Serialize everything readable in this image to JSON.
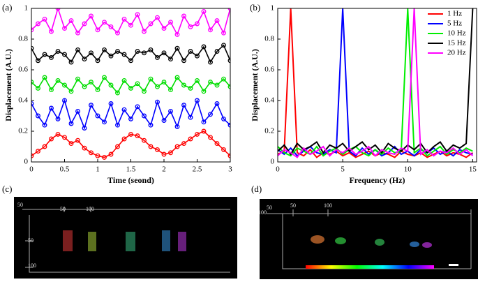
{
  "chart_data": [
    {
      "type": "line",
      "label": "(a)",
      "xlabel": "Time (seond)",
      "ylabel": "Displacement (A.U.)",
      "markers": true,
      "x": [
        0,
        0.1,
        0.2,
        0.3,
        0.4,
        0.5,
        0.6,
        0.7,
        0.8,
        0.9,
        1,
        1.1,
        1.2,
        1.3,
        1.4,
        1.5,
        1.6,
        1.7,
        1.8,
        1.9,
        2,
        2.1,
        2.2,
        2.3,
        2.4,
        2.5,
        2.6,
        2.7,
        2.8,
        2.9,
        3
      ],
      "xlim": [
        0,
        3
      ],
      "xticks": [
        0,
        0.5,
        1,
        1.5,
        2,
        2.5,
        3
      ],
      "ylim": [
        0,
        1
      ],
      "yticks": [
        0,
        0.2,
        0.4,
        0.6,
        0.8,
        1
      ],
      "series": [
        {
          "color": "#ff0000",
          "values": [
            0.04,
            0.07,
            0.1,
            0.15,
            0.18,
            0.16,
            0.12,
            0.14,
            0.09,
            0.06,
            0.04,
            0.03,
            0.05,
            0.1,
            0.15,
            0.18,
            0.17,
            0.14,
            0.1,
            0.08,
            0.05,
            0.06,
            0.1,
            0.12,
            0.15,
            0.18,
            0.2,
            0.16,
            0.12,
            0.08,
            0.04
          ]
        },
        {
          "color": "#0000ff",
          "values": [
            0.38,
            0.3,
            0.24,
            0.35,
            0.28,
            0.4,
            0.25,
            0.33,
            0.22,
            0.37,
            0.3,
            0.26,
            0.38,
            0.24,
            0.34,
            0.28,
            0.36,
            0.3,
            0.24,
            0.39,
            0.27,
            0.33,
            0.23,
            0.37,
            0.29,
            0.4,
            0.26,
            0.31,
            0.38,
            0.28,
            0.24
          ]
        },
        {
          "color": "#00dd00",
          "values": [
            0.52,
            0.48,
            0.55,
            0.47,
            0.53,
            0.5,
            0.46,
            0.54,
            0.49,
            0.52,
            0.47,
            0.55,
            0.5,
            0.45,
            0.53,
            0.48,
            0.51,
            0.46,
            0.54,
            0.49,
            0.52,
            0.47,
            0.55,
            0.5,
            0.48,
            0.53,
            0.46,
            0.52,
            0.5,
            0.54,
            0.49
          ]
        },
        {
          "color": "#000000",
          "values": [
            0.74,
            0.66,
            0.7,
            0.68,
            0.72,
            0.7,
            0.65,
            0.73,
            0.67,
            0.71,
            0.66,
            0.73,
            0.69,
            0.72,
            0.7,
            0.66,
            0.72,
            0.71,
            0.73,
            0.68,
            0.71,
            0.67,
            0.74,
            0.66,
            0.72,
            0.69,
            0.75,
            0.65,
            0.72,
            0.76,
            0.66
          ]
        },
        {
          "color": "#ff00ff",
          "values": [
            0.86,
            0.9,
            0.93,
            0.85,
            1,
            0.87,
            0.92,
            0.84,
            0.9,
            0.95,
            0.86,
            0.91,
            0.88,
            0.84,
            0.93,
            0.89,
            0.96,
            0.85,
            0.9,
            0.94,
            0.87,
            0.91,
            0.83,
            0.95,
            0.88,
            0.9,
            0.98,
            0.86,
            0.92,
            0.84,
            1
          ]
        }
      ]
    },
    {
      "type": "line",
      "label": "(b)",
      "xlabel": "Frequency (Hz)",
      "ylabel": "Displacement (A.U.)",
      "markers": false,
      "legend": "upper right",
      "x": [
        0,
        0.5,
        1,
        1.5,
        2,
        2.5,
        3,
        3.5,
        4,
        4.5,
        5,
        5.5,
        6,
        6.5,
        7,
        7.5,
        8,
        8.5,
        9,
        9.5,
        10,
        10.5,
        11,
        11.5,
        12,
        12.5,
        13,
        13.5,
        14,
        14.5,
        15
      ],
      "xlim": [
        0,
        15.3
      ],
      "xticks": [
        0,
        5,
        10,
        15
      ],
      "ylim": [
        0,
        1
      ],
      "yticks": [
        0,
        0.2,
        0.4,
        0.6,
        0.8,
        1
      ],
      "series": [
        {
          "name": "1 Hz",
          "color": "#ff0000",
          "values": [
            0.05,
            0.07,
            1,
            0.06,
            0.04,
            0.08,
            0.03,
            0.06,
            0.05,
            0.07,
            0.04,
            0.06,
            0.03,
            0.05,
            0.07,
            0.04,
            0.06,
            0.05,
            0.03,
            0.07,
            0.05,
            0.04,
            0.06,
            0.03,
            0.05,
            0.07,
            0.04,
            0.06,
            0.05,
            0.03,
            0.06
          ]
        },
        {
          "name": "5 Hz",
          "color": "#0000ff",
          "values": [
            0.08,
            0.05,
            0.09,
            0.04,
            0.07,
            0.1,
            0.06,
            0.05,
            0.08,
            0.06,
            1,
            0.07,
            0.04,
            0.09,
            0.05,
            0.08,
            0.04,
            0.06,
            0.1,
            0.05,
            0.07,
            0.04,
            0.08,
            0.06,
            0.09,
            0.05,
            0.07,
            0.04,
            0.08,
            0.06,
            0.05
          ]
        },
        {
          "name": "10 Hz",
          "color": "#00ee00",
          "values": [
            0.1,
            0.06,
            0.04,
            0.09,
            0.07,
            0.05,
            0.1,
            0.04,
            0.07,
            0.09,
            0.05,
            0.08,
            0.1,
            0.06,
            0.04,
            0.08,
            0.05,
            0.09,
            0.06,
            0.07,
            1,
            0.06,
            0.09,
            0.04,
            0.07,
            0.1,
            0.05,
            0.08,
            0.06,
            0.09,
            0.07
          ]
        },
        {
          "name": "15 Hz",
          "color": "#000000",
          "values": [
            0.07,
            0.11,
            0.05,
            0.12,
            0.08,
            0.1,
            0.13,
            0.06,
            0.11,
            0.09,
            0.12,
            0.07,
            0.1,
            0.13,
            0.08,
            0.11,
            0.06,
            0.12,
            0.09,
            0.07,
            0.11,
            0.08,
            0.12,
            0.06,
            0.1,
            0.13,
            0.07,
            0.11,
            0.09,
            0.12,
            1
          ]
        },
        {
          "name": "20 Hz",
          "color": "#ff00ff",
          "values": [
            0.04,
            0.08,
            0.06,
            0.03,
            0.09,
            0.05,
            0.07,
            0.1,
            0.04,
            0.08,
            0.06,
            0.09,
            0.05,
            0.07,
            0.1,
            0.04,
            0.08,
            0.06,
            0.05,
            0.09,
            0.07,
            1,
            0.05,
            0.08,
            0.04,
            0.07,
            0.06,
            0.09,
            0.05,
            0.08,
            0.04
          ]
        }
      ]
    }
  ],
  "image_panels": [
    {
      "label": "(c)",
      "tick_labels": [
        "50",
        "50",
        "100",
        "50",
        "100"
      ]
    },
    {
      "label": "(d)",
      "tick_labels": [
        "50",
        "100",
        "50",
        "100"
      ]
    }
  ]
}
